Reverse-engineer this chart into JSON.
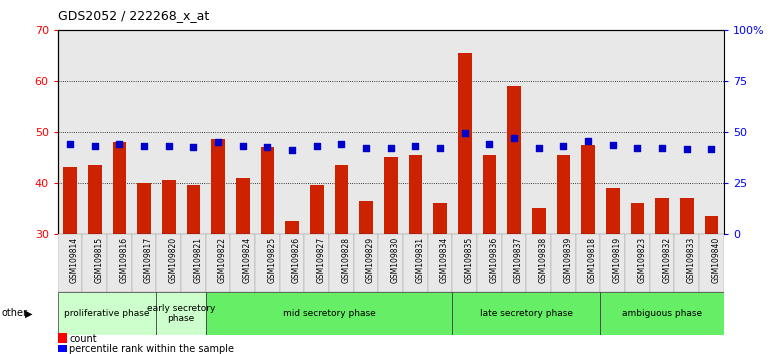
{
  "title": "GDS2052 / 222268_x_at",
  "samples": [
    "GSM109814",
    "GSM109815",
    "GSM109816",
    "GSM109817",
    "GSM109820",
    "GSM109821",
    "GSM109822",
    "GSM109824",
    "GSM109825",
    "GSM109826",
    "GSM109827",
    "GSM109828",
    "GSM109829",
    "GSM109830",
    "GSM109831",
    "GSM109834",
    "GSM109835",
    "GSM109836",
    "GSM109837",
    "GSM109838",
    "GSM109839",
    "GSM109818",
    "GSM109819",
    "GSM109823",
    "GSM109832",
    "GSM109833",
    "GSM109840"
  ],
  "counts": [
    43.0,
    43.5,
    48.0,
    40.0,
    40.5,
    39.5,
    48.5,
    41.0,
    47.0,
    32.5,
    39.5,
    43.5,
    36.5,
    45.0,
    45.5,
    36.0,
    65.5,
    45.5,
    59.0,
    35.0,
    45.5,
    47.5,
    39.0,
    36.0,
    37.0,
    37.0,
    33.5
  ],
  "percentile_ranks": [
    44.0,
    43.0,
    44.0,
    43.0,
    43.0,
    42.5,
    45.0,
    43.0,
    42.5,
    41.0,
    43.0,
    44.0,
    42.0,
    42.0,
    43.0,
    42.0,
    49.5,
    44.0,
    47.0,
    42.0,
    43.0,
    45.5,
    43.5,
    42.0,
    42.0,
    41.5,
    41.5
  ],
  "phases": [
    {
      "name": "proliferative phase",
      "start": 0,
      "end": 3,
      "color": "#ccffcc"
    },
    {
      "name": "early secretory\nphase",
      "start": 4,
      "end": 5,
      "color": "#ccffcc"
    },
    {
      "name": "mid secretory phase",
      "start": 6,
      "end": 15,
      "color": "#66ee66"
    },
    {
      "name": "late secretory phase",
      "start": 16,
      "end": 21,
      "color": "#66ee66"
    },
    {
      "name": "ambiguous phase",
      "start": 22,
      "end": 26,
      "color": "#66ee66"
    }
  ],
  "ylim_left": [
    30,
    70
  ],
  "ylim_right": [
    0,
    100
  ],
  "yticks_left": [
    30,
    40,
    50,
    60,
    70
  ],
  "yticks_right": [
    0,
    25,
    50,
    75,
    100
  ],
  "bar_color": "#cc2200",
  "dot_color": "#0000cc",
  "bar_width": 0.55
}
